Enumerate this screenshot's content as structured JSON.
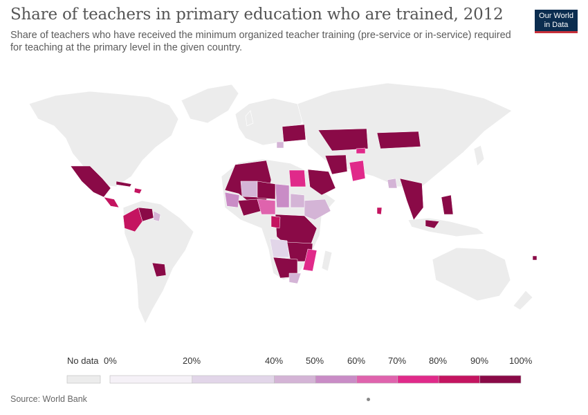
{
  "title": "Share of teachers in primary education who are trained, 2012",
  "subtitle": "Share of teachers who have received the minimum organized teacher training (pre-service or in-service) required for teaching at the primary level in the given country.",
  "logo": {
    "line1": "Our World",
    "line2": "in Data"
  },
  "source": "Source: World Bank",
  "legend": {
    "no_data_label": "No data",
    "no_data_color": "#ececec",
    "ticks": [
      "0%",
      "20%",
      "40%",
      "50%",
      "60%",
      "70%",
      "80%",
      "90%",
      "100%"
    ],
    "bins": [
      {
        "from": 0,
        "to": 20,
        "color": "#f5f1f7"
      },
      {
        "from": 20,
        "to": 40,
        "color": "#e2d6e9"
      },
      {
        "from": 40,
        "to": 50,
        "color": "#d4b4d6"
      },
      {
        "from": 50,
        "to": 60,
        "color": "#c98cc6"
      },
      {
        "from": 60,
        "to": 70,
        "color": "#df63ad"
      },
      {
        "from": 70,
        "to": 80,
        "color": "#e02a8a"
      },
      {
        "from": 80,
        "to": 90,
        "color": "#c41460"
      },
      {
        "from": 90,
        "to": 100,
        "color": "#8a0a47"
      }
    ]
  },
  "colors": {
    "land": "#ececec",
    "border": "#ffffff"
  }
}
